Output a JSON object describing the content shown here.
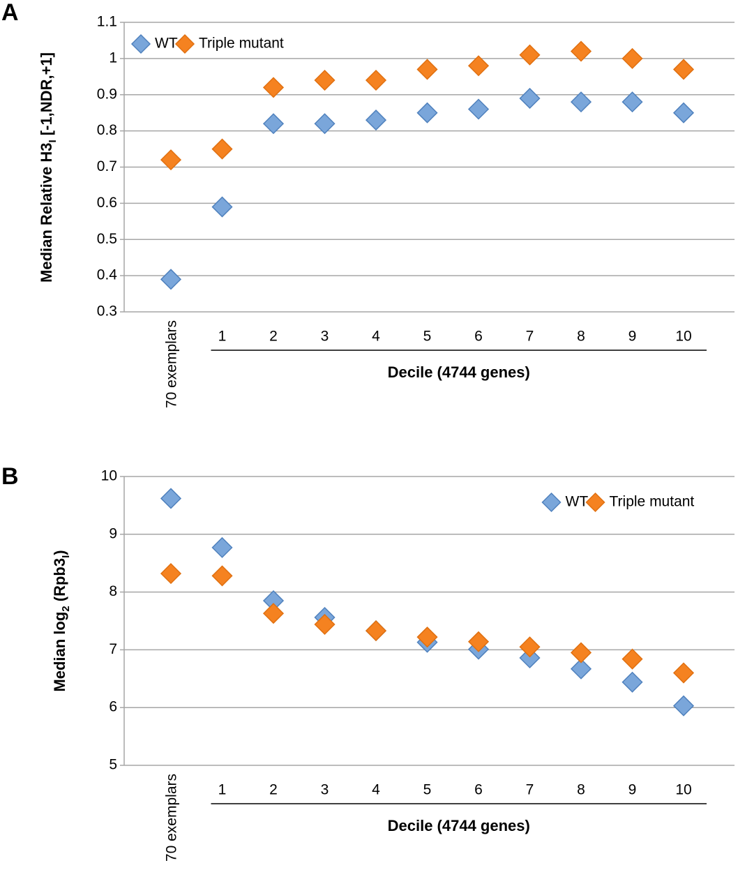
{
  "chart_data": [
    {
      "type": "scatter",
      "panel": "A",
      "ylabel_parts": [
        {
          "text": "Median Relative H3"
        },
        {
          "text": "I",
          "sub": true
        },
        {
          "text": " [-1,NDR,+1]"
        }
      ],
      "categories": [
        "70 exemplars",
        "1",
        "2",
        "3",
        "4",
        "5",
        "6",
        "7",
        "8",
        "9",
        "10"
      ],
      "group_label": "Decile (4744 genes)",
      "series": [
        {
          "name": "WT",
          "color": "#7aa6da",
          "values": [
            0.39,
            0.59,
            0.82,
            0.82,
            0.83,
            0.85,
            0.86,
            0.89,
            0.88,
            0.88,
            0.85
          ]
        },
        {
          "name": "Triple mutant",
          "color": "#f58220",
          "values": [
            0.72,
            0.75,
            0.92,
            0.94,
            0.94,
            0.97,
            0.98,
            1.01,
            1.02,
            1.0,
            0.97
          ]
        }
      ],
      "ylim": [
        0.3,
        1.1
      ],
      "yticks": [
        0.3,
        0.4,
        0.5,
        0.6,
        0.7,
        0.8,
        0.9,
        1,
        1.1
      ],
      "grid": true,
      "legend": "upper left"
    },
    {
      "type": "scatter",
      "panel": "B",
      "ylabel_parts": [
        {
          "text": "Median log"
        },
        {
          "text": "2",
          "sub": true
        },
        {
          "text": " (Rpb3"
        },
        {
          "text": "I",
          "sub": true
        },
        {
          "text": ")"
        }
      ],
      "categories": [
        "70 exemplars",
        "1",
        "2",
        "3",
        "4",
        "5",
        "6",
        "7",
        "8",
        "9",
        "10"
      ],
      "group_label": "Decile (4744 genes)",
      "series": [
        {
          "name": "WT",
          "color": "#7aa6da",
          "values": [
            9.62,
            8.77,
            7.85,
            7.56,
            7.33,
            7.13,
            7.01,
            6.86,
            6.67,
            6.44,
            6.03
          ]
        },
        {
          "name": "Triple mutant",
          "color": "#f58220",
          "values": [
            8.32,
            8.28,
            7.63,
            7.44,
            7.33,
            7.22,
            7.14,
            7.05,
            6.95,
            6.84,
            6.6
          ]
        }
      ],
      "ylim": [
        5,
        10
      ],
      "yticks": [
        5,
        6,
        7,
        8,
        9,
        10
      ],
      "grid": true,
      "legend": "upper right"
    }
  ]
}
